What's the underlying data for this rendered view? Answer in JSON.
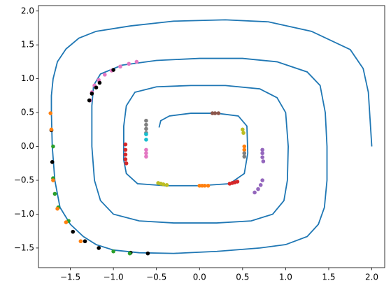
{
  "chart_data": {
    "type": "line",
    "xlim": [
      -1.87,
      2.15
    ],
    "ylim": [
      -1.79,
      2.08
    ],
    "xticks": [
      {
        "value": -1.5,
        "label": "−1.5"
      },
      {
        "value": -1.0,
        "label": "−1.0"
      },
      {
        "value": -0.5,
        "label": "−0.5"
      },
      {
        "value": 0,
        "label": "0.0"
      },
      0.5,
      {
        "value": 1.0,
        "label": "1.0"
      },
      1.5,
      {
        "value": 2.0,
        "label": "2.0"
      }
    ],
    "yticks": [
      {
        "value": -1.5,
        "label": "−1.5"
      },
      {
        "value": -1.0,
        "label": "−1.0"
      },
      {
        "value": -0.5,
        "label": "−0.5"
      },
      {
        "value": 0,
        "label": "0.0"
      },
      0.5,
      {
        "value": 1.0,
        "label": "1.0"
      },
      1.5,
      {
        "value": 2.0,
        "label": "2.0"
      }
    ],
    "series": [
      {
        "type": "line",
        "color": "#1f77b4",
        "x": [
          2.0,
          1.96,
          1.9,
          1.75,
          1.3,
          0.8,
          0.3,
          -0.3,
          -0.8,
          -1.2,
          -1.4,
          -1.55,
          -1.65,
          -1.7,
          -1.72,
          -1.72,
          -1.71,
          -1.68,
          -1.62,
          -1.5,
          -1.35,
          -1.2,
          -1.0,
          -0.7,
          -0.3,
          0.2,
          0.7,
          1.0,
          1.25,
          1.38,
          1.45,
          1.48,
          1.48,
          1.46,
          1.4,
          1.25,
          0.9,
          0.5,
          0.0,
          -0.5,
          -0.9,
          -1.15,
          -1.23,
          -1.25,
          -1.25,
          -1.22,
          -1.15,
          -1.0,
          -0.7,
          -0.3,
          0.2,
          0.6,
          0.85,
          0.98,
          1.02,
          1.03,
          1.0,
          0.9,
          0.7,
          0.3,
          -0.1,
          -0.5,
          -0.75,
          -0.85,
          -0.88,
          -0.88,
          -0.85,
          -0.72,
          -0.4,
          0.0,
          0.35,
          0.52,
          0.56,
          0.55,
          0.45,
          0.2,
          -0.1,
          -0.35,
          -0.45,
          -0.47
        ],
        "y": [
          0.0,
          0.8,
          1.15,
          1.43,
          1.7,
          1.84,
          1.87,
          1.85,
          1.78,
          1.7,
          1.6,
          1.44,
          1.25,
          1.0,
          0.75,
          0.5,
          0.0,
          -0.5,
          -0.9,
          -1.15,
          -1.33,
          -1.45,
          -1.53,
          -1.57,
          -1.58,
          -1.55,
          -1.5,
          -1.45,
          -1.33,
          -1.15,
          -0.9,
          -0.5,
          0.0,
          0.5,
          0.9,
          1.1,
          1.25,
          1.3,
          1.3,
          1.27,
          1.2,
          1.07,
          0.9,
          0.6,
          0.0,
          -0.5,
          -0.8,
          -1.0,
          -1.1,
          -1.13,
          -1.13,
          -1.1,
          -1.0,
          -0.8,
          -0.5,
          0.0,
          0.5,
          0.72,
          0.85,
          0.9,
          0.9,
          0.88,
          0.8,
          0.6,
          0.3,
          -0.2,
          -0.4,
          -0.55,
          -0.58,
          -0.58,
          -0.55,
          -0.4,
          -0.1,
          0.3,
          0.45,
          0.49,
          0.49,
          0.45,
          0.38,
          0.28
        ]
      },
      {
        "type": "scatter",
        "color": "#e377c2",
        "x": [
          -0.73,
          -0.82,
          -0.92,
          -1.02,
          -1.1,
          -1.17,
          -1.22,
          -1.25,
          -1.27,
          -0.62,
          -0.62,
          -0.62
        ],
        "y": [
          1.25,
          1.22,
          1.18,
          1.12,
          1.06,
          0.98,
          0.9,
          0.8,
          0.68,
          -0.05,
          -0.1,
          -0.15
        ]
      },
      {
        "type": "scatter",
        "color": "#000000",
        "x": [
          -1.28,
          -1.25,
          -1.2,
          -1.16,
          -1.0,
          -0.6,
          -0.8,
          -1.17,
          -1.33,
          -1.47,
          -1.72,
          -1.71
        ],
        "y": [
          0.68,
          0.78,
          0.87,
          0.94,
          1.13,
          -1.58,
          -1.57,
          -1.5,
          -1.4,
          -1.26,
          0.24,
          -0.23
        ]
      },
      {
        "type": "scatter",
        "color": "#2ca02c",
        "x": [
          -0.81,
          -1.0,
          -1.64,
          -1.68,
          -1.7,
          -1.7,
          -1.52
        ],
        "y": [
          -1.58,
          -1.55,
          -0.9,
          -0.7,
          -0.47,
          0.0,
          -1.1
        ]
      },
      {
        "type": "scatter",
        "color": "#ff7f0e",
        "x": [
          -1.73,
          -1.72,
          -1.55,
          -1.38,
          -1.65,
          -1.7,
          0.0,
          0.03,
          0.06,
          0.1,
          0.52,
          0.52
        ],
        "y": [
          0.49,
          0.25,
          -1.12,
          -1.4,
          -0.92,
          -0.5,
          -0.58,
          -0.58,
          -0.58,
          -0.58,
          0.0,
          -0.05
        ]
      },
      {
        "type": "scatter",
        "color": "#7f7f7f",
        "x": [
          -0.62,
          -0.62,
          -0.62,
          -0.62,
          0.52,
          0.52
        ],
        "y": [
          0.38,
          0.32,
          0.26,
          0.2,
          -0.1,
          -0.15
        ]
      },
      {
        "type": "scatter",
        "color": "#17becf",
        "x": [
          -0.62,
          -0.62
        ],
        "y": [
          0.18,
          0.1
        ]
      },
      {
        "type": "scatter",
        "color": "#d62728",
        "x": [
          -0.86,
          -0.86,
          -0.86,
          -0.86,
          -0.85,
          0.35,
          0.38,
          0.41,
          0.44
        ],
        "y": [
          0.03,
          -0.05,
          -0.12,
          -0.19,
          -0.25,
          -0.55,
          -0.54,
          -0.53,
          -0.52
        ]
      },
      {
        "type": "scatter",
        "color": "#bcbd22",
        "x": [
          -0.48,
          -0.45,
          -0.42,
          -0.38,
          0.5,
          0.51
        ],
        "y": [
          -0.54,
          -0.55,
          -0.56,
          -0.57,
          0.25,
          0.2
        ]
      },
      {
        "type": "scatter",
        "color": "#9467bd",
        "x": [
          0.64,
          0.68,
          0.71,
          0.73,
          0.73,
          0.73,
          0.73,
          0.74
        ],
        "y": [
          -0.68,
          -0.63,
          -0.57,
          -0.5,
          -0.05,
          -0.1,
          -0.16,
          -0.22
        ]
      },
      {
        "type": "scatter",
        "color": "#8c564b",
        "x": [
          0.15,
          0.18,
          0.22
        ],
        "y": [
          0.49,
          0.49,
          0.49
        ]
      }
    ]
  }
}
